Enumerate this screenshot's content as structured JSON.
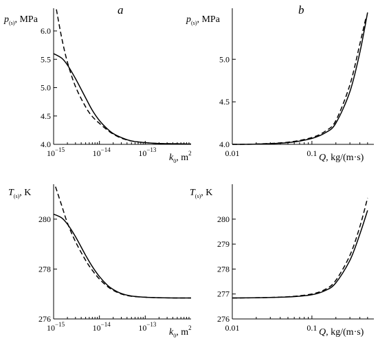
{
  "chart_data": [
    {
      "panel": "a",
      "type": "line",
      "xscale": "log",
      "xlim": [
        1e-15,
        1e-12
      ],
      "ylim": [
        4.0,
        6.4
      ],
      "ylabel": "p(s), MPa",
      "xlabel": "k0, m2",
      "yticks": [
        "4.0",
        "4.5",
        "5.0",
        "5.5",
        "6.0"
      ],
      "xticks": [
        "10",
        "10",
        "10"
      ],
      "xtick_exps": [
        "−15",
        "−14",
        "−13"
      ],
      "series": [
        {
          "style": "solid",
          "x": [
            1e-15,
            1.5e-15,
            2e-15,
            3e-15,
            5e-15,
            7e-15,
            1e-14,
            1.5e-14,
            2e-14,
            3e-14,
            5e-14,
            1e-13,
            2e-13,
            5e-13,
            1e-12
          ],
          "y": [
            5.6,
            5.52,
            5.4,
            5.16,
            4.82,
            4.6,
            4.42,
            4.27,
            4.19,
            4.12,
            4.06,
            4.03,
            4.015,
            4.01,
            4.005
          ]
        },
        {
          "style": "dashed",
          "x": [
            1.15e-15,
            1.5e-15,
            2e-15,
            3e-15,
            5e-15,
            7e-15,
            1e-14,
            1.5e-14,
            2e-14,
            3e-14,
            5e-14,
            1e-13,
            2e-13,
            5e-13,
            1e-12
          ],
          "y": [
            6.38,
            5.88,
            5.45,
            5.02,
            4.66,
            4.49,
            4.37,
            4.25,
            4.18,
            4.11,
            4.06,
            4.03,
            4.015,
            4.01,
            4.005
          ]
        }
      ]
    },
    {
      "panel": "b",
      "type": "line",
      "xscale": "log",
      "xlim": [
        0.01,
        0.6
      ],
      "ylim": [
        4.0,
        5.6
      ],
      "ylabel": "p(s), MPa",
      "xlabel": "Q, kg/(m·s)",
      "yticks": [
        "4.0",
        "4.5",
        "5.0"
      ],
      "xticks": [
        "0.01",
        "0.1"
      ],
      "series": [
        {
          "style": "solid",
          "x": [
            0.01,
            0.02,
            0.05,
            0.1,
            0.15,
            0.2,
            0.3,
            0.4,
            0.5
          ],
          "y": [
            4.0,
            4.003,
            4.02,
            4.07,
            4.14,
            4.25,
            4.62,
            5.08,
            5.55
          ]
        },
        {
          "style": "dashed",
          "x": [
            0.01,
            0.02,
            0.05,
            0.1,
            0.15,
            0.2,
            0.3,
            0.4,
            0.48
          ],
          "y": [
            4.0,
            4.004,
            4.025,
            4.08,
            4.16,
            4.28,
            4.7,
            5.18,
            5.5
          ]
        }
      ]
    },
    {
      "panel": "",
      "type": "line",
      "xscale": "log",
      "xlim": [
        1e-15,
        1e-12
      ],
      "ylim": [
        276.0,
        281.4
      ],
      "ylabel": "T(s), K",
      "xlabel": "k0, m2",
      "yticks": [
        "276",
        "278",
        "280"
      ],
      "xticks": [
        "10",
        "10",
        "10"
      ],
      "xtick_exps": [
        "−15",
        "−14",
        "−13"
      ],
      "series": [
        {
          "style": "solid",
          "x": [
            1e-15,
            1.5e-15,
            2e-15,
            3e-15,
            5e-15,
            7e-15,
            1e-14,
            1.5e-14,
            2e-14,
            3e-14,
            5e-14,
            1e-13,
            2e-13,
            5e-13,
            1e-12
          ],
          "y": [
            280.2,
            280.05,
            279.8,
            279.3,
            278.55,
            278.1,
            277.7,
            277.35,
            277.18,
            277.02,
            276.92,
            276.87,
            276.85,
            276.84,
            276.84
          ]
        },
        {
          "style": "dashed",
          "x": [
            1.1e-15,
            1.5e-15,
            2e-15,
            3e-15,
            5e-15,
            7e-15,
            1e-14,
            1.5e-14,
            2e-14,
            3e-14,
            5e-14,
            1e-13,
            2e-13,
            5e-13,
            1e-12
          ],
          "y": [
            281.3,
            280.55,
            279.85,
            279.1,
            278.35,
            277.95,
            277.6,
            277.3,
            277.15,
            277.0,
            276.91,
            276.87,
            276.85,
            276.84,
            276.84
          ]
        }
      ]
    },
    {
      "panel": "",
      "type": "line",
      "xscale": "log",
      "xlim": [
        0.01,
        0.6
      ],
      "ylim": [
        276.0,
        281.4
      ],
      "ylabel": "T(s), K",
      "xlabel": "Q, kg/(m·s)",
      "yticks": [
        "276",
        "277",
        "278",
        "279",
        "280"
      ],
      "xticks": [
        "0.01",
        "0.1"
      ],
      "series": [
        {
          "style": "solid",
          "x": [
            0.01,
            0.02,
            0.05,
            0.1,
            0.15,
            0.2,
            0.3,
            0.4,
            0.5
          ],
          "y": [
            276.84,
            276.85,
            276.88,
            276.97,
            277.15,
            277.45,
            278.35,
            279.4,
            280.35
          ]
        },
        {
          "style": "dashed",
          "x": [
            0.01,
            0.02,
            0.05,
            0.1,
            0.15,
            0.2,
            0.3,
            0.4,
            0.5
          ],
          "y": [
            276.84,
            276.85,
            276.89,
            277.0,
            277.2,
            277.55,
            278.55,
            279.7,
            280.85
          ]
        }
      ]
    }
  ],
  "labels": {
    "p_sym": "p",
    "p_sub": "(s)",
    "p_unit": ", MPa",
    "t_sym": "T",
    "t_sub": "(s)",
    "t_unit": ", K",
    "k_sym": "k",
    "k_sub": "0",
    "k_unit": ", m",
    "k_sup": "2",
    "q_sym": "Q",
    "q_unit": ", kg/(m·s)",
    "panel_a": "a",
    "panel_b": "b"
  }
}
